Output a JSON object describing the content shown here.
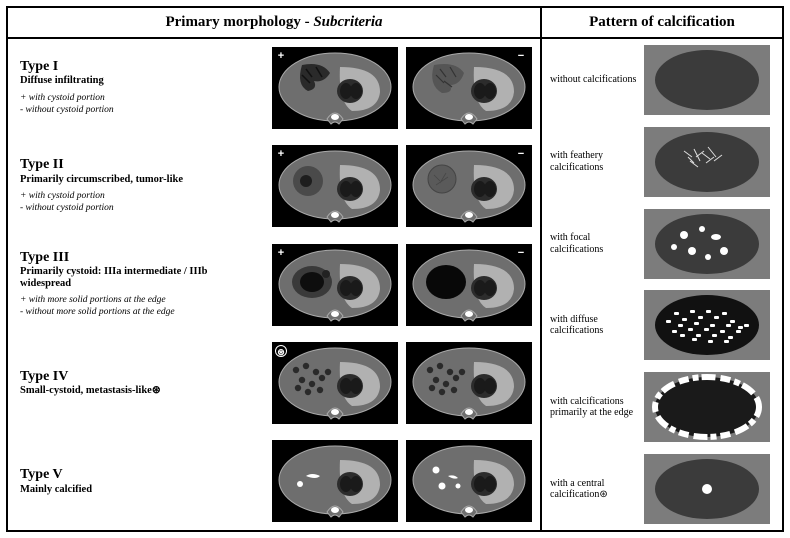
{
  "colors": {
    "border": "#000000",
    "bg": "#ffffff",
    "ct_bg": "#000000",
    "tissue": "#6e6e6e",
    "dark_tissue": "#2c2c2c",
    "light_tissue": "#b8b8b8",
    "calc_bg": "#7c7c7c",
    "ellipse_fill": "#3b3b3b",
    "calc_white": "#ffffff"
  },
  "left_header_a": "Primary morphology - ",
  "left_header_b": "Subcriteria",
  "right_header": "Pattern of calcification",
  "types": [
    {
      "title": "Type I",
      "sub": "Diffuse infiltrating",
      "notes": "+ with cystoid portion\n- without cystoid portion",
      "badges": [
        "+",
        "−"
      ]
    },
    {
      "title": "Type II",
      "sub": "Primarily circumscribed, tumor-like",
      "notes": "+ with cystoid portion\n- without cystoid portion",
      "badges": [
        "+",
        "−"
      ]
    },
    {
      "title": "Type III",
      "sub": "Primarily cystoid: IIIa intermediate / IIIb widespread",
      "notes": "+ with more solid portions at the edge\n- without more solid portions at the edge",
      "badges": [
        "+",
        "−"
      ]
    },
    {
      "title": "Type IV",
      "sub": "Small-cystoid, metastasis-like⊛",
      "notes": "",
      "badges": [
        "⊛",
        ""
      ]
    },
    {
      "title": "Type V",
      "sub": "Mainly calcified",
      "notes": "",
      "badges": [
        "",
        ""
      ]
    }
  ],
  "calc_patterns": [
    {
      "label": "without calcifications",
      "kind": "none"
    },
    {
      "label": "with feathery calcifications",
      "kind": "feathery"
    },
    {
      "label": "with focal calcifications",
      "kind": "focal"
    },
    {
      "label": "with diffuse calcifications",
      "kind": "diffuse"
    },
    {
      "label": "with calcifications primarily at the edge",
      "kind": "edge"
    },
    {
      "label": "with a central calcification⊛",
      "kind": "central"
    }
  ]
}
